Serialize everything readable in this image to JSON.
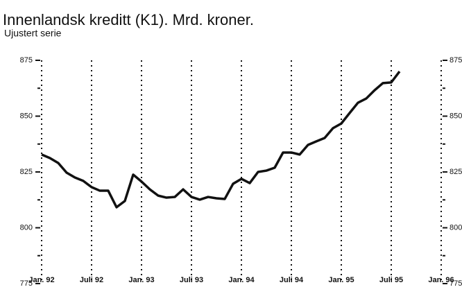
{
  "chart_data": {
    "type": "line",
    "title": "Innenlandsk kreditt (K1). Mrd. kroner.",
    "subtitle": "Ujustert serie",
    "categories": [
      "Jan. 92",
      null,
      null,
      null,
      null,
      null,
      "Juli 92",
      null,
      null,
      null,
      null,
      null,
      "Jan. 93",
      null,
      null,
      null,
      null,
      null,
      "Juli 93",
      null,
      null,
      null,
      null,
      null,
      "Jan. 94",
      null,
      null,
      null,
      null,
      null,
      "Juli 94",
      null,
      null,
      null,
      null,
      null,
      "Jan. 95",
      null,
      null,
      null,
      null,
      null,
      "Juli 95",
      null,
      null,
      null,
      null,
      null,
      "Jan. 96"
    ],
    "values": [
      832.8,
      831.2,
      829,
      824.7,
      822.5,
      821,
      818.2,
      816.6,
      816.6,
      809.2,
      812,
      823.8,
      820.7,
      817.2,
      814.4,
      813.5,
      813.8,
      817.2,
      813.8,
      812.6,
      813.8,
      813.2,
      812.9,
      819.7,
      821.9,
      820,
      825,
      825.6,
      826.9,
      833.7,
      833.7,
      832.8,
      837.1,
      838.7,
      840.2,
      844.6,
      846.7,
      851.4,
      856,
      857.9,
      861.6,
      864.8,
      865.1,
      870,
      null,
      null,
      null,
      null,
      null
    ],
    "color": "#111111",
    "ylim": [
      775,
      875
    ],
    "yticks": [
      775,
      800,
      825,
      850,
      875
    ],
    "minor_yticks": [
      787.5,
      812.5,
      837.5,
      862.5
    ],
    "y2lim": [
      775,
      875
    ],
    "y2ticks": [
      775,
      800,
      825,
      850,
      875
    ],
    "grid": true
  }
}
